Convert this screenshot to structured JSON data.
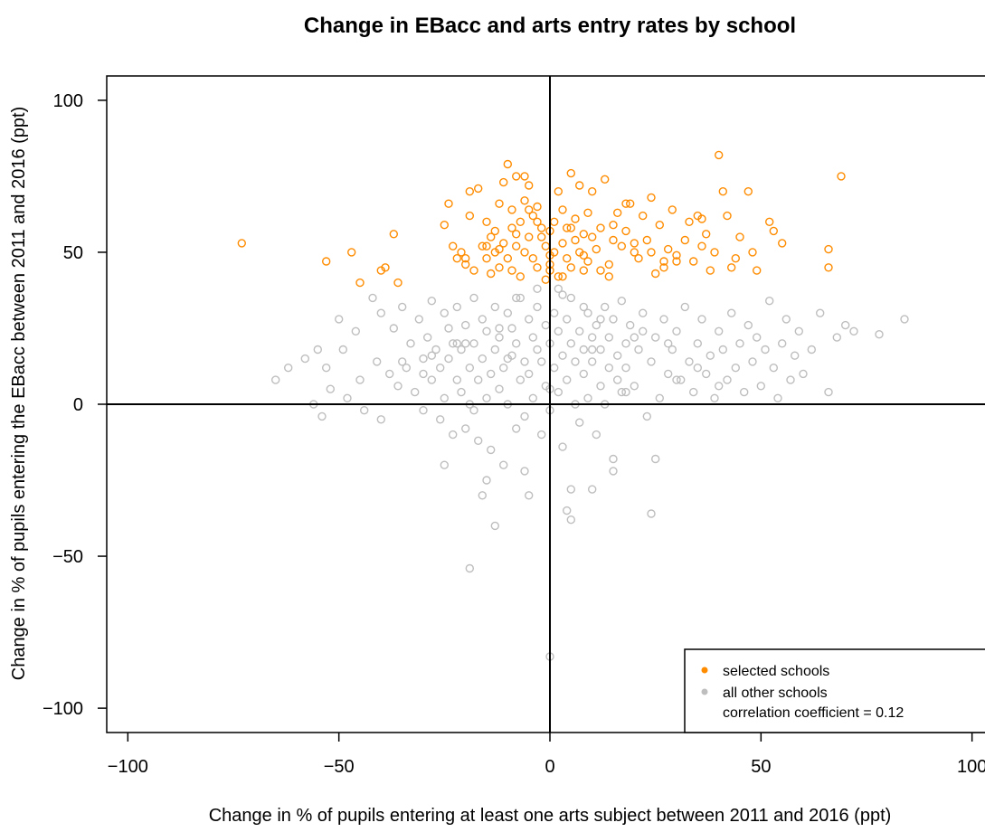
{
  "colors": {
    "selected": "#ff8c00",
    "other": "#bebebe",
    "axis": "#000000"
  },
  "chart_data": {
    "type": "scatter",
    "title": "Change in EBacc and arts entry rates by school",
    "xlabel": "Change in % of pupils entering at least one arts subject between 2011 and 2016 (ppt)",
    "ylabel": "Change in % of pupils entering the EBacc between 2011 and 2016 (ppt)",
    "xlim": [
      -105,
      105
    ],
    "ylim": [
      -108,
      108
    ],
    "xticks": [
      -100,
      -50,
      0,
      50,
      100
    ],
    "yticks": [
      -100,
      -50,
      0,
      50,
      100
    ],
    "xtick_labels": [
      "−100",
      "−50",
      "0",
      "50",
      "100"
    ],
    "ytick_labels": [
      "−100",
      "−50",
      "0",
      "50",
      "100"
    ],
    "reference_lines": {
      "x": 0,
      "y": 0
    },
    "grid": false,
    "legend_position": "bottom-right",
    "legend": {
      "selected_label": "selected schools",
      "other_label": "all other schools",
      "note": "correlation coefficient = 0.12"
    },
    "series": [
      {
        "name": "selected schools",
        "color": "#ff8c00",
        "x": [
          -73,
          -53,
          -47,
          -45,
          -40,
          -39,
          -37,
          -36,
          -25,
          -24,
          -23,
          -22,
          -21,
          -20,
          -19,
          -19,
          -18,
          -17,
          -16,
          -15,
          -15,
          -14,
          -14,
          -13,
          -13,
          -12,
          -12,
          -11,
          -11,
          -10,
          -10,
          -9,
          -9,
          -9,
          -8,
          -8,
          -7,
          -7,
          -6,
          -6,
          -6,
          -5,
          -5,
          -4,
          -4,
          -3,
          -3,
          -2,
          -2,
          -1,
          -1,
          0,
          0,
          0,
          1,
          1,
          2,
          2,
          3,
          3,
          4,
          4,
          5,
          5,
          6,
          6,
          7,
          7,
          8,
          8,
          9,
          9,
          10,
          10,
          11,
          12,
          13,
          14,
          15,
          16,
          17,
          18,
          19,
          20,
          21,
          22,
          23,
          24,
          25,
          26,
          27,
          28,
          29,
          30,
          32,
          33,
          34,
          35,
          36,
          37,
          38,
          39,
          40,
          41,
          42,
          43,
          44,
          45,
          47,
          48,
          49,
          52,
          53,
          55,
          66,
          66,
          69,
          -15,
          -5,
          0,
          5,
          12,
          18,
          24,
          30,
          36,
          -20,
          -8,
          3,
          15,
          27,
          -12,
          8,
          20,
          -3,
          14
        ],
        "y": [
          53,
          47,
          50,
          40,
          44,
          45,
          56,
          40,
          59,
          66,
          52,
          48,
          50,
          46,
          70,
          62,
          44,
          71,
          52,
          48,
          60,
          55,
          43,
          57,
          50,
          45,
          66,
          53,
          73,
          79,
          48,
          64,
          58,
          44,
          75,
          52,
          60,
          42,
          67,
          50,
          75,
          72,
          55,
          48,
          62,
          65,
          45,
          55,
          58,
          41,
          52,
          49,
          57,
          44,
          60,
          50,
          70,
          42,
          53,
          64,
          48,
          58,
          76,
          45,
          54,
          61,
          50,
          72,
          44,
          56,
          63,
          47,
          55,
          70,
          51,
          58,
          74,
          46,
          59,
          63,
          52,
          57,
          66,
          50,
          48,
          62,
          54,
          68,
          43,
          59,
          45,
          51,
          64,
          49,
          54,
          60,
          47,
          62,
          52,
          56,
          44,
          50,
          82,
          70,
          62,
          45,
          48,
          55,
          70,
          50,
          44,
          60,
          57,
          53,
          51,
          45,
          75,
          52,
          64,
          46,
          58,
          44,
          66,
          50,
          47,
          61,
          48,
          56,
          42,
          54,
          47,
          51,
          49,
          53,
          60,
          42
        ]
      },
      {
        "name": "all other schools",
        "color": "#bebebe",
        "x": [
          -65,
          -62,
          -58,
          -56,
          -55,
          -54,
          -53,
          -52,
          -50,
          -49,
          -48,
          -46,
          -45,
          -44,
          -42,
          -41,
          -40,
          -38,
          -37,
          -36,
          -35,
          -34,
          -33,
          -32,
          -31,
          -30,
          -30,
          -29,
          -28,
          -28,
          -27,
          -26,
          -26,
          -25,
          -25,
          -24,
          -24,
          -23,
          -23,
          -22,
          -22,
          -21,
          -21,
          -20,
          -20,
          -19,
          -19,
          -18,
          -18,
          -17,
          -17,
          -16,
          -16,
          -15,
          -15,
          -14,
          -14,
          -13,
          -13,
          -12,
          -12,
          -11,
          -11,
          -10,
          -10,
          -9,
          -9,
          -8,
          -8,
          -7,
          -7,
          -6,
          -6,
          -5,
          -5,
          -4,
          -4,
          -3,
          -3,
          -2,
          -2,
          -1,
          -1,
          0,
          0,
          1,
          1,
          2,
          2,
          3,
          3,
          4,
          4,
          5,
          5,
          6,
          6,
          7,
          7,
          8,
          8,
          9,
          9,
          10,
          10,
          11,
          11,
          12,
          12,
          13,
          13,
          14,
          14,
          15,
          15,
          16,
          16,
          17,
          17,
          18,
          18,
          19,
          20,
          21,
          22,
          23,
          24,
          25,
          26,
          27,
          28,
          29,
          30,
          31,
          32,
          33,
          34,
          35,
          36,
          37,
          38,
          39,
          40,
          41,
          42,
          43,
          44,
          45,
          46,
          47,
          48,
          49,
          50,
          51,
          52,
          53,
          54,
          55,
          56,
          57,
          58,
          59,
          60,
          62,
          64,
          66,
          68,
          70,
          72,
          78,
          84,
          -30,
          -20,
          -10,
          0,
          10,
          20,
          30,
          -25,
          -15,
          -5,
          5,
          15,
          25,
          -35,
          35,
          -40,
          40,
          -18,
          18,
          -8,
          8,
          -3,
          3,
          -12,
          12,
          -22,
          22,
          -28,
          28,
          0,
          5,
          -19,
          4,
          -13,
          24,
          10,
          -6,
          -16,
          2
        ],
        "y": [
          8,
          12,
          15,
          0,
          18,
          -4,
          12,
          5,
          28,
          18,
          2,
          24,
          8,
          -2,
          35,
          14,
          30,
          10,
          25,
          6,
          32,
          12,
          20,
          4,
          28,
          -2,
          15,
          22,
          8,
          34,
          18,
          -5,
          12,
          30,
          2,
          25,
          15,
          -10,
          20,
          8,
          32,
          4,
          18,
          -8,
          26,
          12,
          0,
          35,
          20,
          -12,
          8,
          28,
          15,
          2,
          24,
          -15,
          10,
          32,
          18,
          5,
          22,
          -20,
          12,
          30,
          0,
          16,
          25,
          -8,
          20,
          8,
          35,
          14,
          -4,
          28,
          10,
          22,
          2,
          18,
          32,
          -10,
          14,
          26,
          6,
          20,
          -2,
          30,
          12,
          24,
          4,
          16,
          -14,
          28,
          8,
          20,
          35,
          0,
          14,
          24,
          -6,
          18,
          10,
          30,
          2,
          22,
          14,
          -10,
          26,
          6,
          18,
          32,
          0,
          12,
          22,
          -18,
          28,
          8,
          16,
          34,
          4,
          20,
          12,
          26,
          6,
          18,
          30,
          -4,
          14,
          22,
          2,
          28,
          10,
          18,
          24,
          8,
          32,
          14,
          4,
          20,
          28,
          10,
          16,
          2,
          24,
          18,
          8,
          30,
          12,
          20,
          4,
          26,
          14,
          22,
          6,
          18,
          34,
          12,
          2,
          20,
          28,
          8,
          16,
          24,
          10,
          18,
          30,
          4,
          22,
          26,
          24,
          23,
          28,
          10,
          20,
          15,
          5,
          18,
          22,
          8,
          -20,
          -25,
          -30,
          -28,
          -22,
          -18,
          14,
          12,
          -5,
          6,
          -2,
          4,
          35,
          32,
          38,
          36,
          25,
          28,
          20,
          24,
          16,
          20,
          -83,
          -38,
          -54,
          -35,
          -40,
          -36,
          -28,
          -22,
          -30,
          38
        ]
      }
    ]
  }
}
